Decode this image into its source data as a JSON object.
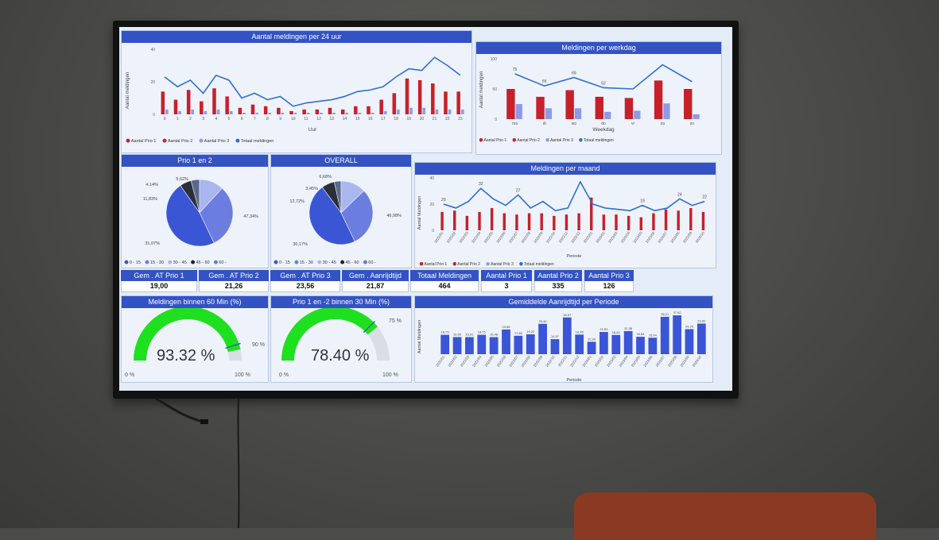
{
  "hourly": {
    "title": "Aantal meldingen per 24 uur",
    "ylabel": "Aantal meldingen",
    "xlabel": "Uur",
    "yticks": [
      "40",
      "20",
      "0"
    ],
    "legend": [
      "Aantal Prio 1",
      "Aantal Prio 2",
      "Aantal Prio 3",
      "Totaal meldingen"
    ]
  },
  "weekday": {
    "title": "Meldingen per werkdag",
    "ylabel": "Aantal meldingen",
    "xlabel": "Weekdag",
    "yticks": [
      "100",
      "50",
      "0"
    ],
    "legend": [
      "Aantal Prio 1",
      "Aantal Prio 2",
      "Aantal Prio 3",
      "Totaal meldingen"
    ]
  },
  "pie1": {
    "title": "Prio 1 en 2",
    "labels": [
      "5,62%",
      "4,14%",
      "11,83%",
      "31,07%",
      "47,34%"
    ],
    "legend": [
      "0 - 15",
      "15 - 30",
      "30 - 45",
      "45 - 60",
      "60 -"
    ]
  },
  "pie2": {
    "title": "OVERALL",
    "labels": [
      "6,68%",
      "3,45%",
      "12,72%",
      "30,17%",
      "46,98%"
    ],
    "legend": [
      "0 - 15",
      "15 - 30",
      "30 - 45",
      "45 - 60",
      "60 -"
    ]
  },
  "monthly": {
    "title": "Meldingen per maand",
    "ylabel": "Aantal Meldingen",
    "xlabel": "Periode",
    "yticks": [
      "40",
      "20",
      "0"
    ],
    "legend": [
      "Aantal Prio 1",
      "Aantal Prio 2",
      "Aantal Prio 3",
      "Totaal meldingen"
    ]
  },
  "kpis": [
    {
      "label": "Gem . AT Prio 1",
      "value": "19,00"
    },
    {
      "label": "Gem . AT Prio 2",
      "value": "21,26"
    },
    {
      "label": "Gem . AT Prio 3",
      "value": "23,56"
    },
    {
      "label": "Gem . Aanrijdtijd",
      "value": "21,87"
    },
    {
      "label": "Totaal Meldingen",
      "value": "464"
    },
    {
      "label": "Aantal Prio 1",
      "value": "3"
    },
    {
      "label": "Aantal Prio 2",
      "value": "335"
    },
    {
      "label": "Aantal Prio 3",
      "value": "126"
    }
  ],
  "gauge1": {
    "title": "Meldingen binnen 60 Min (%)",
    "value": 93.32,
    "display": "93.32 %",
    "target": 90,
    "target_label": "90 %",
    "min": "0 %",
    "max": "100 %"
  },
  "gauge2": {
    "title": "Prio 1 en -2 binnen 30 Min (%)",
    "value": 78.4,
    "display": "78.40 %",
    "target": 75,
    "target_label": "75 %",
    "min": "0 %",
    "max": "100 %"
  },
  "avg": {
    "title": "Gemiddelde Aanrijdtijd per Periode",
    "ylabel": "Aantal Meldingen",
    "xlabel": "Periode"
  },
  "colors": {
    "prio1": "#c8202a",
    "prio2": "#8e9ae8",
    "prio3": "#c6cdf2",
    "line": "#2f6ed3",
    "header": "#3352c4",
    "gauge": "#1fe01f"
  },
  "chart_data": [
    {
      "type": "bar",
      "title": "Aantal meldingen per 24 uur",
      "xlabel": "Uur",
      "ylabel": "Aantal meldingen",
      "ylim": [
        0,
        40
      ],
      "categories": [
        "0",
        "1",
        "2",
        "3",
        "4",
        "5",
        "6",
        "7",
        "8",
        "9",
        "10",
        "11",
        "12",
        "13",
        "14",
        "15",
        "16",
        "17",
        "18",
        "19",
        "20",
        "21",
        "22",
        "23"
      ],
      "series": [
        {
          "name": "Aantal Prio 1",
          "values": [
            14,
            9,
            15,
            8,
            16,
            11,
            4,
            6,
            5,
            4,
            2,
            3,
            3,
            4,
            3,
            5,
            5,
            9,
            13,
            22,
            21,
            19,
            14,
            14
          ]
        },
        {
          "name": "Aantal Prio 2",
          "values": [
            3,
            2,
            3,
            2,
            3,
            2,
            1,
            1,
            1,
            1,
            1,
            1,
            1,
            1,
            1,
            1,
            1,
            2,
            3,
            4,
            4,
            3,
            3,
            3
          ]
        },
        {
          "name": "Totaal meldingen",
          "values": [
            23,
            17,
            21,
            13,
            24,
            21,
            10,
            13,
            9,
            11,
            5,
            7,
            8,
            9,
            11,
            14,
            15,
            17,
            23,
            28,
            27,
            35,
            30,
            24
          ]
        }
      ],
      "legend": "bottom-left"
    },
    {
      "type": "bar",
      "title": "Meldingen per werkdag",
      "xlabel": "Weekdag",
      "ylabel": "Aantal meldingen",
      "ylim": [
        0,
        100
      ],
      "categories": [
        "ma",
        "di",
        "wo",
        "do",
        "vr",
        "za",
        "zo"
      ],
      "series": [
        {
          "name": "Aantal Prio 1",
          "values": [
            50,
            37,
            48,
            37,
            35,
            64,
            50
          ]
        },
        {
          "name": "Aantal Prio 2",
          "values": [
            25,
            18,
            18,
            12,
            14,
            26,
            8
          ]
        },
        {
          "name": "Totaal meldingen",
          "values": [
            75,
            55,
            69,
            52,
            50,
            90,
            62
          ]
        }
      ],
      "labels": [
        "75",
        "55",
        "69",
        "52",
        "",
        "",
        ""
      ],
      "legend": "bottom-left"
    },
    {
      "type": "pie",
      "title": "Prio 1 en 2",
      "categories": [
        "0 - 15",
        "15 - 30",
        "30 - 45",
        "45 - 60",
        "60 -"
      ],
      "values": [
        5.62,
        4.14,
        11.83,
        31.07,
        47.34
      ]
    },
    {
      "type": "pie",
      "title": "OVERALL",
      "categories": [
        "0 - 15",
        "15 - 30",
        "30 - 45",
        "45 - 60",
        "60 -"
      ],
      "values": [
        6.68,
        3.45,
        12.72,
        30.17,
        46.98
      ]
    },
    {
      "type": "bar",
      "title": "Meldingen per maand",
      "xlabel": "Periode",
      "ylabel": "Aantal Meldingen",
      "ylim": [
        0,
        40
      ],
      "categories": [
        "2022/01",
        "2022/02",
        "2022/03",
        "2022/04",
        "2022/05",
        "2022/06",
        "2022/07",
        "2022/08",
        "2022/09",
        "2022/10",
        "2022/11",
        "2022/12",
        "2023/01",
        "2023/02",
        "2023/03",
        "2023/04",
        "2023/05",
        "2023/06",
        "2023/07",
        "2023/08",
        "2023/09",
        "2023/10"
      ],
      "series": [
        {
          "name": "Aantal Prio 1",
          "values": [
            14,
            15,
            11,
            14,
            17,
            13,
            12,
            13,
            13,
            11,
            12,
            13,
            25,
            12,
            12,
            11,
            10,
            13,
            16,
            15,
            17,
            14
          ]
        },
        {
          "name": "Totaal meldingen",
          "values": [
            20,
            17,
            22,
            32,
            24,
            19,
            27,
            17,
            22,
            15,
            17,
            37,
            20,
            17,
            16,
            15,
            19,
            15,
            17,
            24,
            19,
            22
          ]
        }
      ],
      "labels": [
        "20",
        "",
        "",
        "32",
        "",
        "",
        "27",
        "",
        "",
        "",
        "",
        "",
        "",
        "",
        "",
        "",
        "19",
        "",
        "",
        "24",
        "",
        "22"
      ],
      "legend": "bottom-left"
    },
    {
      "type": "bar",
      "title": "Gemiddelde Aanrijdtijd per Periode",
      "xlabel": "Periode",
      "ylabel": "Aantal Meldingen",
      "ylim": [
        0,
        40
      ],
      "categories": [
        "2022/01",
        "2022/02",
        "2022/03",
        "2022/04",
        "2022/05",
        "2022/06",
        "2022/07",
        "2022/08",
        "2022/09",
        "2022/10",
        "2022/11",
        "2022/12",
        "2023/01",
        "2023/02",
        "2023/03",
        "2023/04",
        "2023/05",
        "2023/06",
        "2023/07",
        "2023/08",
        "2023/09",
        "2023/10"
      ],
      "values": [
        18.75,
        16.55,
        16.51,
        18.75,
        16.48,
        23.88,
        17.85,
        19.22,
        29.4,
        14.57,
        35.57,
        18.95,
        12.0,
        21.53,
        18.63,
        22.38,
        16.84,
        15.94,
        36.21,
        37.62,
        24.25,
        29.62
      ],
      "labels": [
        "18,75",
        "16,55",
        "16,51",
        "18,75",
        "16,48",
        "23,88",
        "17,85",
        "19,22",
        "29,40",
        "14,57",
        "35,57",
        "18,95",
        "12,00",
        "21,53",
        "18,63",
        "22,38",
        "16,84",
        "15,94",
        "36,21",
        "37,62",
        "24,25",
        "29,62"
      ]
    }
  ]
}
